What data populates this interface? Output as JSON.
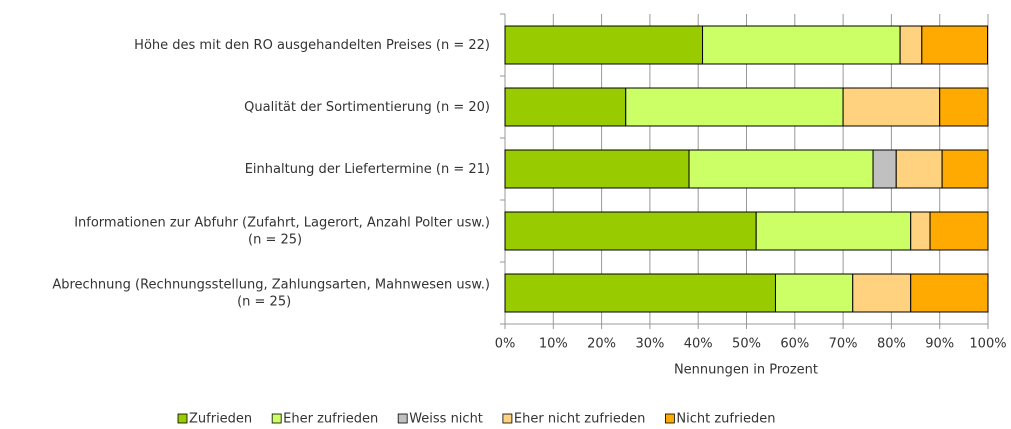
{
  "chart_data": {
    "type": "stacked-bar-horizontal",
    "categories": [
      "Höhe des mit den RO ausgehandelten Preises (n = 22)",
      "Qualität der Sortimentierung (n = 20)",
      "Einhaltung der Liefertermine (n = 21)",
      "Informationen zur Abfuhr (Zufahrt, Lagerort, Anzahl Polter usw.)\n(n = 25)",
      "Abrechnung (Rechnungsstellung, Zahlungsarten, Mahnwesen usw.)\n(n = 25)"
    ],
    "series": [
      {
        "name": "Zufrieden",
        "color": "#99cc00",
        "values": [
          40.9,
          25,
          38.1,
          52,
          56
        ]
      },
      {
        "name": "Eher zufrieden",
        "color": "#ccff66",
        "values": [
          40.9,
          45,
          38.1,
          32,
          16
        ]
      },
      {
        "name": "Weiss nicht",
        "color": "#c0c0c0",
        "values": [
          0,
          0,
          4.8,
          0,
          0
        ]
      },
      {
        "name": "Eher nicht zufrieden",
        "color": "#ffd280",
        "values": [
          4.5,
          20,
          9.5,
          4,
          12
        ]
      },
      {
        "name": "Nicht zufrieden",
        "color": "#ffaa00",
        "values": [
          13.6,
          10,
          9.5,
          12,
          16
        ]
      }
    ],
    "xlabel": "Nennungen in Prozent",
    "xlim": [
      0,
      100
    ],
    "xticks": [
      {
        "value": 0,
        "label": "0%"
      },
      {
        "value": 10,
        "label": "10%"
      },
      {
        "value": 20,
        "label": "20%"
      },
      {
        "value": 30,
        "label": "30%"
      },
      {
        "value": 40,
        "label": "40%"
      },
      {
        "value": 50,
        "label": "50%"
      },
      {
        "value": 60,
        "label": "60%"
      },
      {
        "value": 70,
        "label": "70%"
      },
      {
        "value": 80,
        "label": "80%"
      },
      {
        "value": 90,
        "label": "90%"
      },
      {
        "value": 100,
        "label": "100%"
      }
    ],
    "grid": true,
    "legend": "bottom"
  }
}
